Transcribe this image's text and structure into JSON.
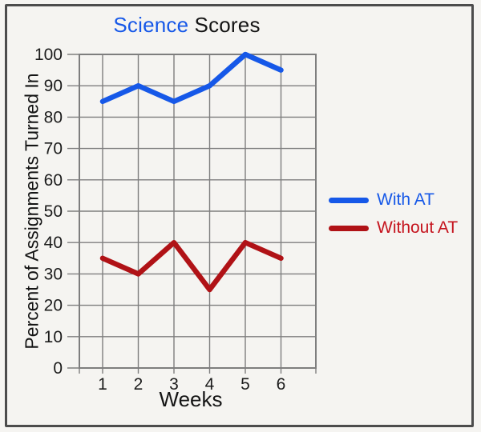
{
  "header": {
    "title_part_blue": "Science",
    "title_part_black": "Scores"
  },
  "axes": {
    "y_label": "Percent of Assignments Turned In",
    "x_label": "Weeks"
  },
  "legend": {
    "items": [
      {
        "label": "With AT",
        "line_color": "#1658e8",
        "text_color": "#1658e8"
      },
      {
        "label": "Without AT",
        "line_color": "#b01216",
        "text_color": "#c5131d"
      }
    ]
  },
  "chart_data": {
    "type": "line",
    "title": "Science Scores",
    "xlabel": "Weeks",
    "ylabel": "Percent of Assignments Turned In",
    "categories": [
      "1",
      "2",
      "3",
      "4",
      "5",
      "6"
    ],
    "series": [
      {
        "name": "With AT",
        "color": "#1658e8",
        "values": [
          85,
          90,
          85,
          90,
          100,
          95
        ]
      },
      {
        "name": "Without AT",
        "color": "#b01216",
        "values": [
          35,
          30,
          40,
          25,
          40,
          35
        ]
      }
    ],
    "ylim": [
      0,
      100
    ],
    "yticks": [
      0,
      10,
      20,
      30,
      40,
      50,
      60,
      70,
      80,
      90,
      100
    ],
    "grid": true,
    "legend_position": "right"
  },
  "colors": {
    "background": "#f5f4f1",
    "frame_border": "#4c4c4c",
    "grid": "#7e7e7e",
    "text": "#1c1c1c"
  }
}
